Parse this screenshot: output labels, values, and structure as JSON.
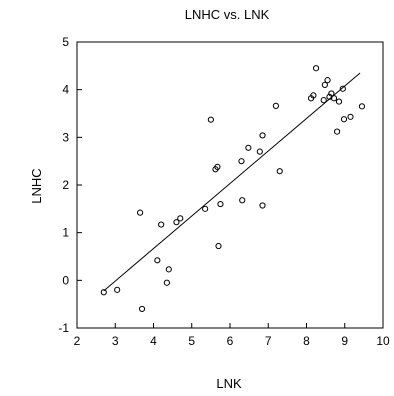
{
  "chart_data": {
    "type": "scatter",
    "title": "LNHC vs. LNK",
    "xlabel": "LNK",
    "ylabel": "LNHC",
    "xlim": [
      2,
      10
    ],
    "ylim": [
      -1,
      5
    ],
    "xticks": [
      "2",
      "3",
      "4",
      "5",
      "6",
      "7",
      "8",
      "9",
      "10"
    ],
    "yticks": [
      "-1",
      "0",
      "1",
      "2",
      "3",
      "4",
      "5"
    ],
    "grid": false,
    "legend": "none",
    "points": [
      {
        "x": 2.7,
        "y": -0.25
      },
      {
        "x": 3.05,
        "y": -0.2
      },
      {
        "x": 3.65,
        "y": 1.42
      },
      {
        "x": 3.7,
        "y": -0.6
      },
      {
        "x": 4.1,
        "y": 0.42
      },
      {
        "x": 4.2,
        "y": 1.17
      },
      {
        "x": 4.35,
        "y": -0.05
      },
      {
        "x": 4.4,
        "y": 0.23
      },
      {
        "x": 4.6,
        "y": 1.22
      },
      {
        "x": 4.7,
        "y": 1.3
      },
      {
        "x": 5.35,
        "y": 1.5
      },
      {
        "x": 5.5,
        "y": 3.37
      },
      {
        "x": 5.62,
        "y": 2.33
      },
      {
        "x": 5.67,
        "y": 2.38
      },
      {
        "x": 5.7,
        "y": 0.72
      },
      {
        "x": 5.75,
        "y": 1.6
      },
      {
        "x": 6.3,
        "y": 2.5
      },
      {
        "x": 6.32,
        "y": 1.68
      },
      {
        "x": 6.48,
        "y": 2.78
      },
      {
        "x": 6.78,
        "y": 2.7
      },
      {
        "x": 6.85,
        "y": 3.04
      },
      {
        "x": 6.85,
        "y": 1.57
      },
      {
        "x": 7.2,
        "y": 3.66
      },
      {
        "x": 7.3,
        "y": 2.29
      },
      {
        "x": 8.12,
        "y": 3.82
      },
      {
        "x": 8.18,
        "y": 3.88
      },
      {
        "x": 8.25,
        "y": 4.45
      },
      {
        "x": 8.45,
        "y": 3.78
      },
      {
        "x": 8.48,
        "y": 4.1
      },
      {
        "x": 8.55,
        "y": 4.2
      },
      {
        "x": 8.6,
        "y": 3.85
      },
      {
        "x": 8.65,
        "y": 3.92
      },
      {
        "x": 8.72,
        "y": 3.82
      },
      {
        "x": 8.8,
        "y": 3.12
      },
      {
        "x": 8.85,
        "y": 3.75
      },
      {
        "x": 8.95,
        "y": 4.02
      },
      {
        "x": 8.98,
        "y": 3.38
      },
      {
        "x": 9.15,
        "y": 3.43
      },
      {
        "x": 9.45,
        "y": 3.65
      }
    ],
    "fit_line": {
      "x": [
        2.7,
        9.4
      ],
      "y": [
        -0.22,
        4.35
      ]
    },
    "marker": "open-circle",
    "colors": {
      "marker": "#000000",
      "line": "#000000",
      "axis": "#000000"
    }
  }
}
